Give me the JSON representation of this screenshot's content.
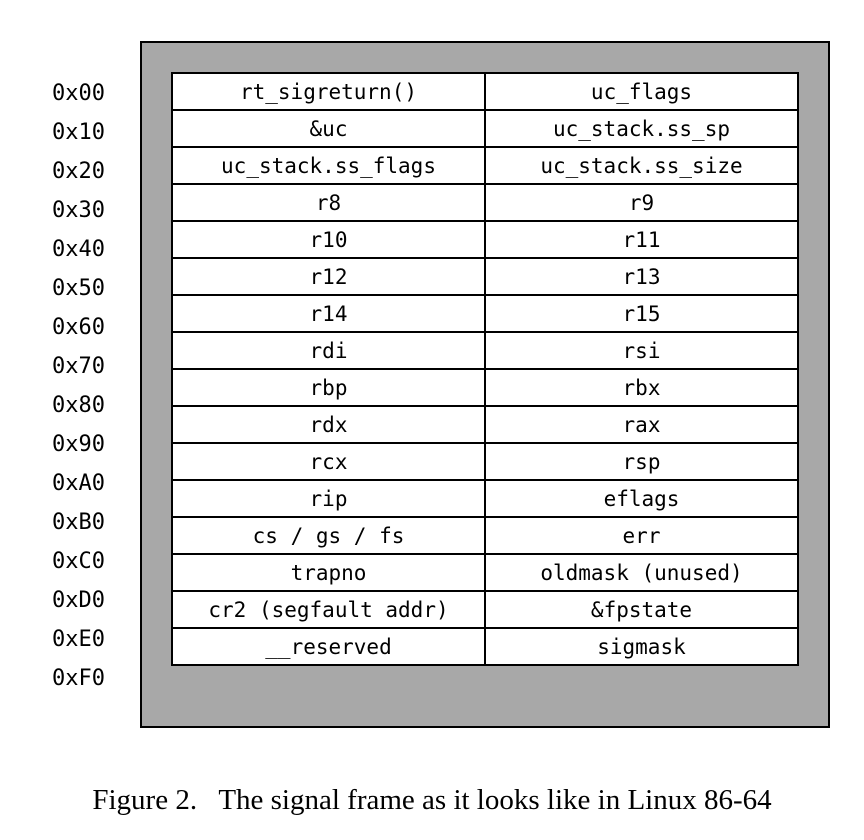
{
  "figure": {
    "caption": "Figure 2.   The signal frame as it looks like in Linux 86-64"
  },
  "offsets": [
    "0x00",
    "0x10",
    "0x20",
    "0x30",
    "0x40",
    "0x50",
    "0x60",
    "0x70",
    "0x80",
    "0x90",
    "0xA0",
    "0xB0",
    "0xC0",
    "0xD0",
    "0xE0",
    "0xF0"
  ],
  "rows": [
    [
      "rt_sigreturn()",
      "uc_flags"
    ],
    [
      "&uc",
      "uc_stack.ss_sp"
    ],
    [
      "uc_stack.ss_flags",
      "uc_stack.ss_size"
    ],
    [
      "r8",
      "r9"
    ],
    [
      "r10",
      "r11"
    ],
    [
      "r12",
      "r13"
    ],
    [
      "r14",
      "r15"
    ],
    [
      "rdi",
      "rsi"
    ],
    [
      "rbp",
      "rbx"
    ],
    [
      "rdx",
      "rax"
    ],
    [
      "rcx",
      "rsp"
    ],
    [
      "rip",
      "eflags"
    ],
    [
      "cs / gs / fs",
      "err"
    ],
    [
      "trapno",
      "oldmask (unused)"
    ],
    [
      "cr2 (segfault addr)",
      "&fpstate"
    ],
    [
      "__reserved",
      "sigmask"
    ]
  ],
  "colors": {
    "frame_fill": "#a8a8a8",
    "cell_fill": "#ffffff",
    "border": "#000000"
  }
}
